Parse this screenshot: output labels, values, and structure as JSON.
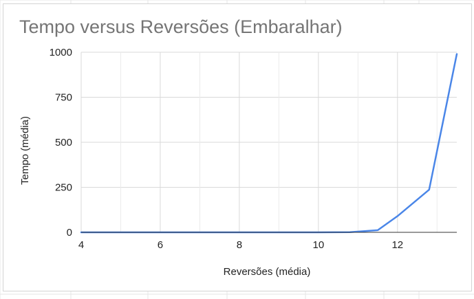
{
  "chart_data": {
    "type": "line",
    "title": "Tempo versus Reversões (Embaralhar)",
    "xlabel": "Reversões (média)",
    "ylabel": "Tempo (média)",
    "xlim": [
      4,
      13.5
    ],
    "ylim": [
      0,
      1000
    ],
    "x_ticks": [
      "4",
      "6",
      "8",
      "10",
      "12"
    ],
    "y_ticks": [
      "0",
      "250",
      "500",
      "750",
      "1000"
    ],
    "grid": true,
    "legend": "none",
    "series": [
      {
        "color": "#4a86e8",
        "points": [
          [
            4,
            0
          ],
          [
            5,
            0
          ],
          [
            6,
            0
          ],
          [
            7,
            0
          ],
          [
            8,
            0
          ],
          [
            9,
            0
          ],
          [
            10,
            0
          ],
          [
            10.8,
            1
          ],
          [
            11.5,
            12
          ],
          [
            12,
            90
          ],
          [
            12.8,
            237
          ],
          [
            13.5,
            990
          ]
        ]
      }
    ]
  }
}
